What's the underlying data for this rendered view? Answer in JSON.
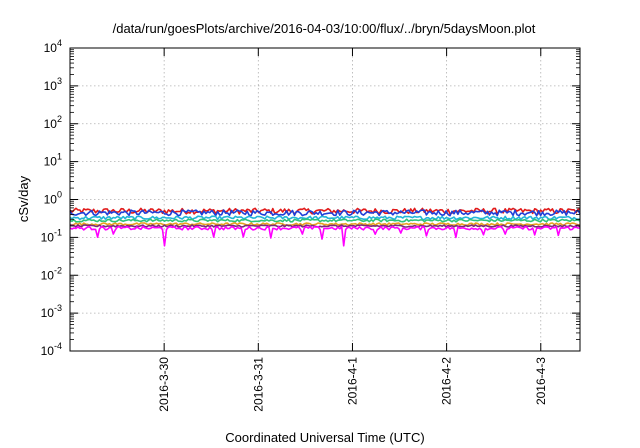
{
  "chart_data": {
    "type": "line",
    "title": "/data/run/goesPlots/archive/2016-04-03/10:00/flux/../bryn/5daysMoon.plot",
    "xlabel": "Coordinated Universal Time (UTC)",
    "ylabel": "cSv/day",
    "yscale": "log",
    "ylim": [
      0.0001,
      10000
    ],
    "y_ticks": [
      {
        "mant": "10",
        "exp": "-4"
      },
      {
        "mant": "10",
        "exp": "-3"
      },
      {
        "mant": "10",
        "exp": "-2"
      },
      {
        "mant": "10",
        "exp": "-1"
      },
      {
        "mant": "10",
        "exp": "0"
      },
      {
        "mant": "10",
        "exp": "1"
      },
      {
        "mant": "10",
        "exp": "2"
      },
      {
        "mant": "10",
        "exp": "3"
      },
      {
        "mant": "10",
        "exp": "4"
      }
    ],
    "xlim": [
      "2016-03-29 00:00",
      "2016-04-03 10:00"
    ],
    "x_ticks": [
      "2016-3-30",
      "2016-3-31",
      "2016-4-1",
      "2016-4-2",
      "2016-4-3"
    ],
    "grid": true,
    "series": [
      {
        "color": "#e11b1b",
        "level": 0.5,
        "jitter": 0.17,
        "dips": false
      },
      {
        "color": "#1f3fd8",
        "level": 0.45,
        "jitter": 0.17,
        "dips": false
      },
      {
        "color": "#22b5d8",
        "level": 0.33,
        "jitter": 0.1,
        "dips": false
      },
      {
        "color": "#2ec27a",
        "level": 0.28,
        "jitter": 0.08,
        "dips": false
      },
      {
        "color": "#e8a020",
        "level": 0.225,
        "jitter": 0.07,
        "dips": false
      },
      {
        "color": "#7a2a7a",
        "level": 0.2,
        "jitter": 0.06,
        "dips": false
      },
      {
        "color": "#ff00ff",
        "level": 0.175,
        "jitter": 0.1,
        "dips": true
      }
    ]
  }
}
